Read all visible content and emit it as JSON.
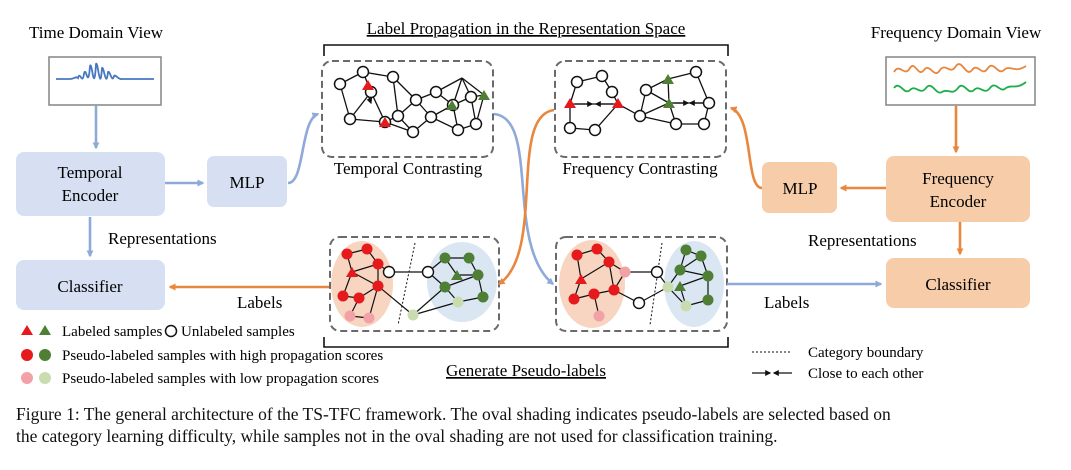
{
  "views": {
    "time": "Time Domain View",
    "frequency": "Frequency Domain View"
  },
  "blocks": {
    "temporal_encoder": [
      "Temporal",
      "Encoder"
    ],
    "frequency_encoder": [
      "Frequency",
      "Encoder"
    ],
    "mlp_left": "MLP",
    "mlp_right": "MLP",
    "classifier_left": "Classifier",
    "classifier_right": "Classifier"
  },
  "flow_labels": {
    "representations_left": "Representations",
    "representations_right": "Representations",
    "labels_left": "Labels",
    "labels_right": "Labels"
  },
  "sections": {
    "label_propagation": "Label Propagation in the Representation Space",
    "temporal_contrasting": "Temporal Contrasting",
    "frequency_contrasting": "Frequency Contrasting",
    "generate_pseudo_labels": "Generate Pseudo-labels"
  },
  "legend": {
    "labeled": "Labeled samples",
    "unlabeled": "Unlabeled samples",
    "pseudo_high": "Pseudo-labeled samples with high propagation scores",
    "pseudo_low": "Pseudo-labeled samples with low propagation scores",
    "category_boundary": "Category boundary",
    "close_to_each_other": "Close to each other"
  },
  "caption": {
    "line1": "Figure 1: The general architecture of the TS-TFC framework. The oval shading indicates pseudo-labels are selected based on",
    "line2": "the category learning difficulty, while samples not in the oval shading are not used for classification training."
  },
  "colors": {
    "blue_box": "#d6e0f2",
    "orange_box": "#f7cca9",
    "blue_arrow": "#8fa9d8",
    "orange_arrow": "#e8873d",
    "red_node": "#e6191c",
    "green_node": "#4e7f34",
    "light_red_node": "#f2a1a6",
    "light_green_node": "#c8dcb0",
    "time_signal": "#4a78c0",
    "freq_signal_1": "#e8873d",
    "freq_signal_2": "#1fae4a"
  }
}
